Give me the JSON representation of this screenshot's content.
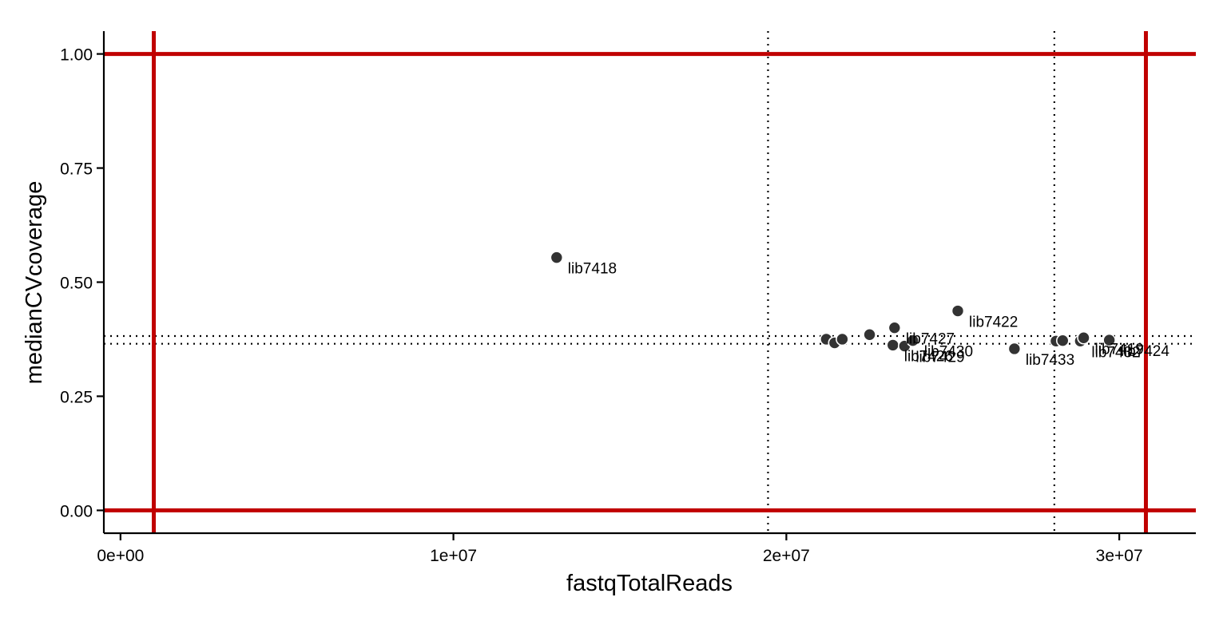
{
  "chart_data": {
    "type": "scatter",
    "xlabel": "fastqTotalReads",
    "ylabel": "medianCVcoverage",
    "xlim": [
      -500000,
      32300000
    ],
    "ylim": [
      -0.05,
      1.05
    ],
    "x_ticks": [
      0,
      10000000,
      20000000,
      30000000
    ],
    "x_tick_labels": [
      "0e+00",
      "1e+07",
      "2e+07",
      "3e+07"
    ],
    "y_ticks": [
      0,
      0.25,
      0.5,
      0.75,
      1
    ],
    "y_tick_labels": [
      "0.00",
      "0.25",
      "0.50",
      "0.75",
      "1.00"
    ],
    "threshold_lines": {
      "color": "#c00000",
      "x": [
        1000000,
        30800000
      ],
      "y": [
        0,
        1
      ]
    },
    "dotted_lines": {
      "color": "#000000",
      "x": [
        19450000,
        28050000
      ],
      "y": [
        0.365,
        0.382
      ]
    },
    "point_color": "#333333",
    "points": [
      {
        "x": 13100000,
        "y": 0.554,
        "label": "lib7418"
      },
      {
        "x": 25150000,
        "y": 0.437,
        "label": "lib7422"
      },
      {
        "x": 23250000,
        "y": 0.4,
        "label": "lib7427"
      },
      {
        "x": 22500000,
        "y": 0.385,
        "label": ""
      },
      {
        "x": 21200000,
        "y": 0.375,
        "label": ""
      },
      {
        "x": 21450000,
        "y": 0.367,
        "label": ""
      },
      {
        "x": 21680000,
        "y": 0.375,
        "label": ""
      },
      {
        "x": 23200000,
        "y": 0.362,
        "label": "lib7426"
      },
      {
        "x": 23550000,
        "y": 0.36,
        "label": "lib7429"
      },
      {
        "x": 23800000,
        "y": 0.372,
        "label": "lib7430"
      },
      {
        "x": 26850000,
        "y": 0.354,
        "label": "lib7433"
      },
      {
        "x": 28100000,
        "y": 0.371,
        "label": ""
      },
      {
        "x": 28300000,
        "y": 0.372,
        "label": ""
      },
      {
        "x": 28830000,
        "y": 0.371,
        "label": "lib7432"
      },
      {
        "x": 28930000,
        "y": 0.378,
        "label": "lib7419"
      },
      {
        "x": 29700000,
        "y": 0.373,
        "label": "lib7424"
      }
    ],
    "grid": false,
    "legend": "none"
  }
}
